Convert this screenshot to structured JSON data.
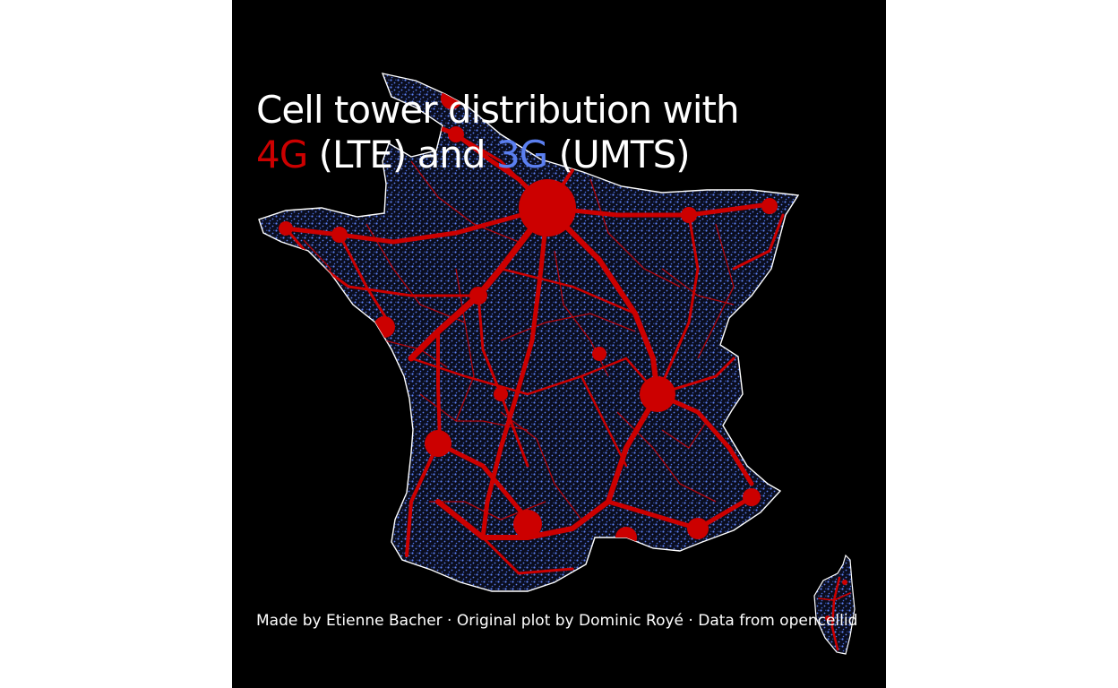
{
  "map": {
    "title_line1": "Cell tower distribution with",
    "title_4g": "4G",
    "title_middle": " (LTE) and ",
    "title_3g": "3G",
    "title_end": " (UMTS)",
    "caption": "Made by Etienne Bacher · Original plot by Dominic Royé · Data from opencellid",
    "colors": {
      "background": "#000000",
      "lte": "#cc0000",
      "umts": "#5b7ff0",
      "border": "#ffffff"
    },
    "layers": [
      {
        "name": "4G (LTE)",
        "color": "#cc0000"
      },
      {
        "name": "3G (UMTS)",
        "color": "#5b7ff0"
      }
    ],
    "regions": [
      "France",
      "Corsica"
    ]
  }
}
